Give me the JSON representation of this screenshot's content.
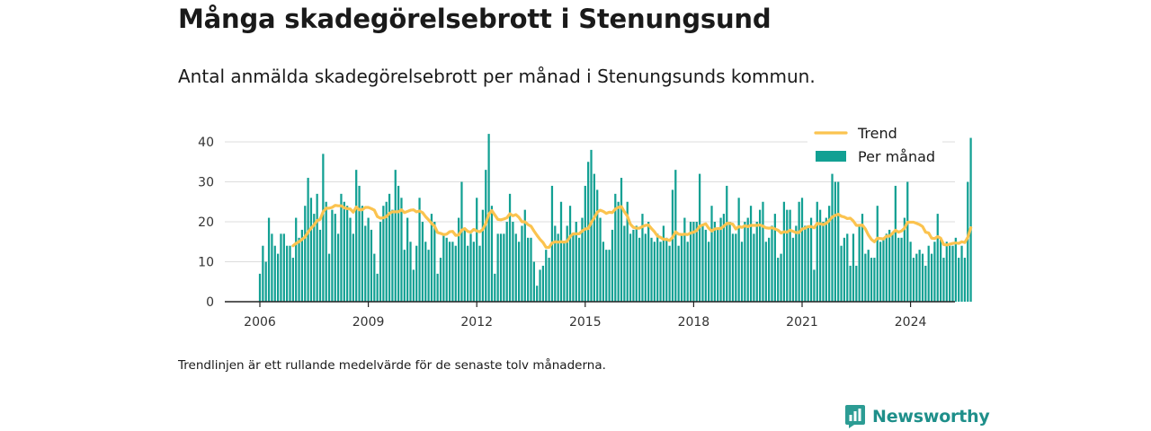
{
  "title": "Många skadegörelsebrott i Stenungsund",
  "subtitle": "Antal anmälda skadegörelsebrott per månad i Stenungsunds kommun.",
  "footnote": "Trendlinjen är ett rullande medelvärde för de senaste tolv månaderna.",
  "brand": {
    "name": "Newsworthy",
    "icon": "newsworthy-logo-icon",
    "color": "#1e8f8a"
  },
  "colors": {
    "bars": "#12a093",
    "trend": "#fbc34f",
    "grid": "#dddddd",
    "axis": "#222222"
  },
  "chart_data": {
    "type": "bar",
    "x_start": "2006-01",
    "x_interval": "month",
    "ylim": [
      0,
      40
    ],
    "yticks": [
      0,
      10,
      20,
      30,
      40
    ],
    "xticks": [
      "2006",
      "2009",
      "2012",
      "2015",
      "2018",
      "2021",
      "2024"
    ],
    "legend": {
      "position": "top-right",
      "entries": [
        "Trend",
        "Per månad"
      ]
    },
    "grid": true,
    "series": [
      {
        "name": "Per månad",
        "type": "bar",
        "values": [
          7,
          14,
          10,
          21,
          17,
          14,
          12,
          17,
          17,
          14,
          14,
          11,
          21,
          16,
          18,
          24,
          31,
          26,
          22,
          27,
          18,
          37,
          25,
          12,
          23,
          22,
          17,
          27,
          25,
          24,
          21,
          17,
          33,
          29,
          24,
          19,
          21,
          18,
          12,
          7,
          20,
          24,
          25,
          27,
          23,
          33,
          29,
          26,
          13,
          21,
          15,
          8,
          14,
          26,
          20,
          15,
          13,
          22,
          20,
          7,
          11,
          17,
          16,
          15,
          15,
          14,
          21,
          30,
          18,
          14,
          17,
          15,
          26,
          14,
          23,
          33,
          42,
          24,
          7,
          17,
          17,
          17,
          20,
          27,
          20,
          17,
          15,
          19,
          23,
          16,
          16,
          10,
          4,
          8,
          9,
          13,
          11,
          29,
          19,
          17,
          25,
          15,
          19,
          24,
          17,
          20,
          16,
          21,
          29,
          35,
          38,
          32,
          28,
          21,
          15,
          13,
          13,
          18,
          27,
          25,
          31,
          19,
          25,
          17,
          18,
          19,
          16,
          22,
          17,
          20,
          16,
          15,
          17,
          15,
          19,
          16,
          14,
          28,
          33,
          14,
          17,
          21,
          15,
          20,
          20,
          20,
          32,
          19,
          18,
          15,
          24,
          20,
          18,
          21,
          22,
          29,
          20,
          17,
          17,
          26,
          15,
          20,
          21,
          24,
          17,
          20,
          23,
          25,
          15,
          16,
          19,
          22,
          11,
          12,
          25,
          23,
          23,
          16,
          19,
          25,
          26,
          19,
          19,
          21,
          8,
          25,
          23,
          20,
          21,
          24,
          32,
          30,
          30,
          14,
          16,
          17,
          9,
          17,
          9,
          19,
          22,
          12,
          13,
          11,
          11,
          24,
          15,
          16,
          17,
          18,
          17,
          29,
          16,
          16,
          21,
          30,
          15,
          11,
          12,
          13,
          12,
          9,
          14,
          12,
          15,
          22,
          16,
          11,
          15,
          14,
          14,
          16,
          11,
          14,
          11,
          30,
          41
        ]
      },
      {
        "name": "Trend",
        "type": "line",
        "values": [
          null,
          null,
          null,
          null,
          null,
          null,
          null,
          null,
          null,
          null,
          null,
          14,
          14.6,
          15.0,
          15.6,
          16.2,
          17.4,
          18.4,
          19.2,
          20.3,
          20.6,
          22.5,
          23.4,
          23.4,
          23.6,
          24.1,
          24.0,
          24.0,
          23.5,
          23.3,
          23.2,
          22.4,
          23.7,
          23.0,
          23.0,
          23.6,
          23.6,
          23.3,
          22.9,
          21.3,
          20.9,
          21.0,
          21.3,
          22.1,
          22.5,
          22.5,
          22.5,
          23.0,
          22.3,
          22.6,
          22.9,
          23.0,
          22.5,
          22.7,
          22.3,
          21.3,
          20.5,
          19.6,
          18.9,
          17.3,
          17.1,
          16.8,
          16.9,
          17.5,
          17.6,
          16.6,
          16.7,
          17.9,
          18.3,
          17.6,
          17.4,
          18.1,
          17.7,
          17.5,
          18.1,
          19.6,
          21.9,
          22.8,
          21.7,
          20.6,
          20.5,
          20.7,
          21.0,
          22.0,
          21.5,
          21.8,
          21.1,
          20.0,
          20.0,
          19.3,
          18.9,
          17.7,
          16.6,
          15.6,
          14.8,
          13.6,
          13.6,
          14.7,
          15.0,
          14.9,
          15.0,
          14.9,
          15.1,
          16.3,
          17.0,
          17.0,
          17.0,
          17.7,
          18.2,
          18.3,
          19.8,
          21.0,
          22.4,
          22.9,
          22.6,
          22.1,
          22.4,
          22.3,
          23.2,
          23.6,
          23.8,
          22.5,
          21.4,
          19.4,
          18.6,
          18.4,
          18.4,
          18.8,
          19.1,
          19.2,
          18.3,
          17.5,
          16.4,
          16.1,
          15.6,
          15.6,
          15.3,
          16.1,
          17.5,
          16.9,
          16.8,
          16.9,
          16.8,
          17.2,
          17.4,
          17.8,
          18.9,
          19.2,
          19.5,
          18.4,
          17.7,
          18.2,
          18.3,
          18.3,
          18.9,
          19.6,
          19.6,
          19.4,
          18.2,
          18.8,
          18.6,
          19.0,
          18.8,
          19.1,
          19.1,
          19.1,
          19.2,
          18.9,
          18.5,
          18.4,
          18.5,
          18.2,
          17.9,
          17.2,
          17.5,
          17.4,
          17.9,
          17.6,
          17.3,
          17.3,
          18.2,
          18.4,
          18.8,
          18.8,
          18.5,
          19.6,
          19.5,
          19.3,
          19.6,
          20.3,
          21.2,
          21.6,
          21.9,
          21.4,
          21.2,
          20.8,
          20.9,
          20.2,
          19.1,
          19.1,
          19.2,
          18.2,
          16.7,
          15.6,
          15.0,
          15.9,
          15.8,
          15.7,
          16.4,
          16.4,
          17.1,
          17.9,
          17.4,
          17.7,
          18.4,
          19.9,
          19.9,
          19.9,
          19.6,
          19.3,
          18.8,
          17.4,
          17.2,
          15.9,
          15.8,
          16.3,
          15.9,
          14.3,
          14.2,
          14.4,
          14.6,
          14.7,
          14.6,
          15.0,
          14.8,
          16.1,
          18.5
        ]
      }
    ]
  }
}
